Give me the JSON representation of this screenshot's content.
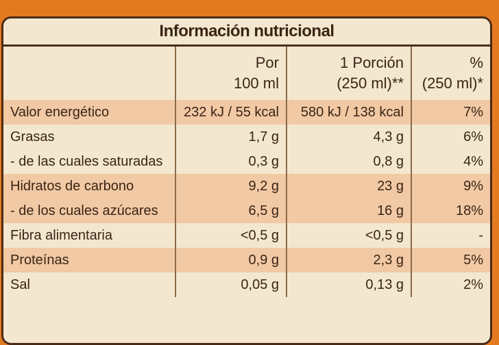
{
  "title": "Información nutricional",
  "header": [
    [
      "Por",
      "100 ml"
    ],
    [
      "1 Porción",
      "(250 ml)**"
    ],
    [
      "%",
      "(250 ml)*"
    ]
  ],
  "rows": [
    [
      "Valor energético",
      "232 kJ / 55 kcal",
      "580 kJ / 138 kcal",
      "7%"
    ],
    [
      "Grasas",
      "1,7 g",
      "4,3 g",
      "6%"
    ],
    [
      "- de las cuales saturadas",
      "0,3 g",
      "0,8 g",
      "4%"
    ],
    [
      "Hidratos de carbono",
      "9,2 g",
      "23 g",
      "9%"
    ],
    [
      "- de los cuales azúcares",
      "6,5 g",
      "16 g",
      "18%"
    ],
    [
      "Fibra alimentaria",
      "<0,5 g",
      "<0,5 g",
      "-"
    ],
    [
      "Proteínas",
      "0,9 g",
      "2,3 g",
      "5%"
    ],
    [
      "Sal",
      "0,05 g",
      "0,13 g",
      "2%"
    ]
  ]
}
